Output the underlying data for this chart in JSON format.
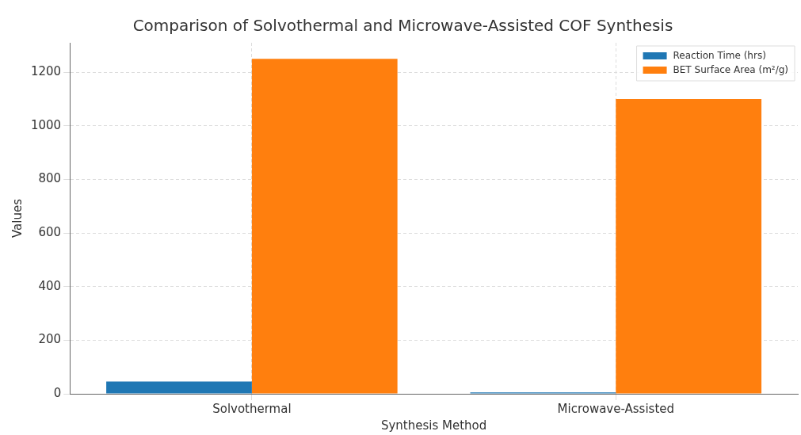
{
  "chart_data": {
    "type": "bar",
    "title": "Comparison of Solvothermal and Microwave-Assisted COF Synthesis",
    "xlabel": "Synthesis Method",
    "ylabel": "Values",
    "categories": [
      "Solvothermal",
      "Microwave-Assisted"
    ],
    "series": [
      {
        "name": "Reaction Time (hrs)",
        "color": "#1f77b4",
        "values": [
          46,
          5
        ]
      },
      {
        "name": "BET Surface Area (m²/g)",
        "color": "#ff7f0e",
        "values": [
          1250,
          1100
        ]
      }
    ],
    "ylim": [
      0,
      1310
    ],
    "yticks": [
      0,
      200,
      400,
      600,
      800,
      1000,
      1200
    ],
    "grid": true,
    "legend": "top right"
  }
}
